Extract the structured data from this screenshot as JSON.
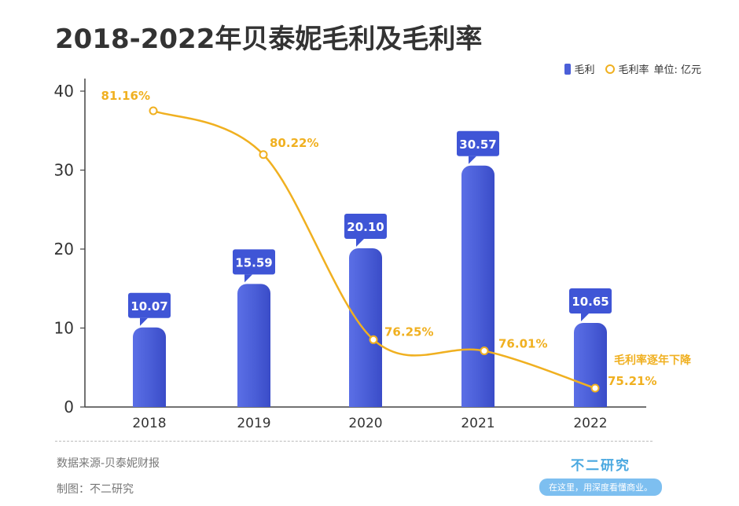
{
  "title": "2018-2022年贝泰妮毛利及毛利率",
  "legend": {
    "bar_label": "毛利",
    "line_label": "毛利率",
    "unit": "单位: 亿元"
  },
  "chart_data": {
    "type": "bar+line",
    "categories": [
      "2018",
      "2019",
      "2020",
      "2021",
      "2022"
    ],
    "series": [
      {
        "name": "毛利",
        "values": [
          10.07,
          15.59,
          20.1,
          30.57,
          10.65
        ],
        "labels": [
          "10.07",
          "15.59",
          "20.10",
          "30.57",
          "10.65"
        ]
      },
      {
        "name": "毛利率",
        "values": [
          81.16,
          80.22,
          76.25,
          76.01,
          75.21
        ],
        "labels": [
          "81.16%",
          "80.22%",
          "76.25%",
          "76.01%",
          "75.21%"
        ]
      }
    ],
    "y_ticks": [
      "0",
      "10",
      "20",
      "30",
      "40"
    ],
    "ylim": [
      0,
      40
    ],
    "annotation": "毛利率逐年下降"
  },
  "colors": {
    "bar": "#4b5fd8",
    "bar_label_bg": "#3f55d6",
    "line": "#f0b020",
    "axis": "#444444"
  },
  "footer": {
    "source": "数据来源-贝泰妮财报",
    "maker": "制图：不二研究"
  },
  "brand": {
    "name": "不二研究",
    "slogan": "在这里，用深度看懂商业。"
  }
}
